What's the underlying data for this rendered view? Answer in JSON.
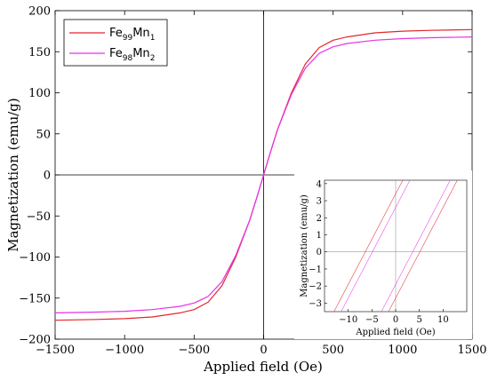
{
  "chart_data": {
    "type": "line",
    "xlabel": "Applied field (Oe)",
    "ylabel": "Magnetization (emu/g)",
    "xlim": [
      -1500,
      1500
    ],
    "ylim": [
      -200,
      200
    ],
    "xticks": [
      -1500,
      -1000,
      -500,
      0,
      500,
      1000,
      1500
    ],
    "yticks": [
      -200,
      -150,
      -100,
      -50,
      0,
      50,
      100,
      150,
      200
    ],
    "grid": false,
    "legend_position": "top-left",
    "series": [
      {
        "name": "Fe99Mn1",
        "legend": {
          "a": "Fe",
          "a_sub": "99",
          "b": "Mn",
          "b_sub": "1"
        },
        "color": "#e3262b",
        "x": [
          -1500,
          -1200,
          -1000,
          -800,
          -600,
          -500,
          -400,
          -300,
          -200,
          -100,
          -50,
          0,
          50,
          100,
          200,
          300,
          400,
          500,
          600,
          800,
          1000,
          1200,
          1500
        ],
        "y": [
          -177,
          -176,
          -175,
          -173,
          -168,
          -164,
          -155,
          -135,
          -100,
          -55,
          -28,
          0,
          28,
          55,
          100,
          135,
          155,
          164,
          168,
          173,
          175,
          176,
          177
        ]
      },
      {
        "name": "Fe98Mn2",
        "legend": {
          "a": "Fe",
          "a_sub": "98",
          "b": "Mn",
          "b_sub": "2"
        },
        "color": "#e632e6",
        "x": [
          -1500,
          -1200,
          -1000,
          -800,
          -600,
          -500,
          -400,
          -300,
          -200,
          -100,
          -50,
          0,
          50,
          100,
          200,
          300,
          400,
          500,
          600,
          800,
          1000,
          1200,
          1500
        ],
        "y": [
          -168,
          -167,
          -166,
          -164,
          -160,
          -156,
          -148,
          -130,
          -98,
          -55,
          -28,
          0,
          28,
          55,
          98,
          130,
          148,
          156,
          160,
          164,
          166,
          167,
          168
        ]
      }
    ],
    "inset": {
      "xlabel": "Applied field (Oe)",
      "ylabel": "Magnetization (emu/g)",
      "xlim": [
        -15,
        15
      ],
      "ylim": [
        -3.5,
        4.2
      ],
      "xticks": [
        -10,
        -5,
        0,
        5,
        10
      ],
      "yticks": [
        -3,
        -2,
        -1,
        0,
        1,
        2,
        3,
        4
      ],
      "lines": [
        {
          "series": "Fe99Mn1",
          "color": "#e3262b",
          "x": [
            -13,
            1.5
          ],
          "y": [
            -3.5,
            4.2
          ]
        },
        {
          "series": "Fe99Mn1",
          "color": "#e3262b",
          "x": [
            -1.5,
            13
          ],
          "y": [
            -3.5,
            4.2
          ]
        },
        {
          "series": "Fe98Mn2",
          "color": "#e632e6",
          "x": [
            -11.5,
            3
          ],
          "y": [
            -3.5,
            4.2
          ]
        },
        {
          "series": "Fe98Mn2",
          "color": "#e632e6",
          "x": [
            -3,
            11.5
          ],
          "y": [
            -3.5,
            4.2
          ]
        }
      ]
    }
  }
}
